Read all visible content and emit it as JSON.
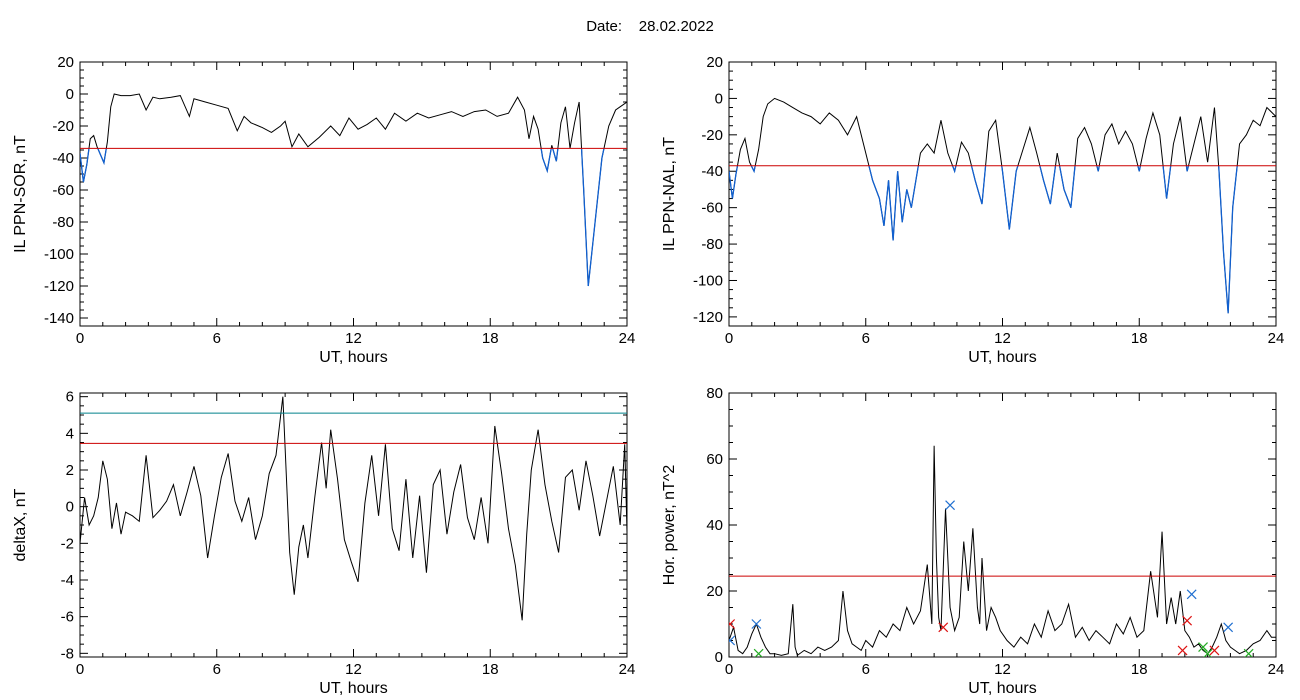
{
  "figure": {
    "date_label": "Date:",
    "date_value": "28.02.2022"
  },
  "colors": {
    "trace": "#000000",
    "below_threshold": "#1060d0",
    "red_threshold": "#cc0000",
    "teal_threshold": "#00808a",
    "marker_blue": "#1f6fd0",
    "marker_red": "#dd1111",
    "marker_green": "#22aa22"
  },
  "chart_data": [
    {
      "id": "il-sor",
      "type": "line",
      "ylabel": "IL PPN-SOR, nT",
      "xlabel": "UT, hours",
      "xlim": [
        0,
        24
      ],
      "ylim": [
        -145,
        20
      ],
      "xticks": [
        0,
        6,
        12,
        18,
        24
      ],
      "yticks": [
        20,
        0,
        -20,
        -40,
        -60,
        -80,
        -100,
        -120,
        -140
      ],
      "thresholds": [
        {
          "value": -34,
          "color": "red"
        }
      ],
      "below_threshold_colored": true,
      "x": [
        0,
        0.15,
        0.3,
        0.45,
        0.6,
        0.75,
        0.9,
        1.05,
        1.2,
        1.35,
        1.5,
        1.8,
        2.2,
        2.6,
        2.9,
        3.2,
        3.5,
        4.0,
        4.4,
        4.8,
        5.0,
        5.5,
        6.0,
        6.5,
        6.9,
        7.2,
        7.5,
        8.0,
        8.4,
        8.8,
        9.0,
        9.3,
        9.6,
        10.0,
        10.5,
        11.0,
        11.4,
        11.8,
        12.2,
        12.6,
        13.0,
        13.4,
        13.8,
        14.3,
        14.8,
        15.3,
        15.8,
        16.3,
        16.8,
        17.3,
        17.8,
        18.3,
        18.8,
        19.2,
        19.5,
        19.7,
        19.9,
        20.1,
        20.3,
        20.5,
        20.7,
        20.9,
        21.1,
        21.3,
        21.5,
        21.7,
        21.9,
        22.1,
        22.3,
        22.6,
        22.9,
        23.2,
        23.5,
        23.8,
        24
      ],
      "y": [
        -37,
        -55,
        -44,
        -28,
        -26,
        -33,
        -38,
        -43,
        -30,
        -8,
        0,
        -1,
        -1,
        0,
        -10,
        -2,
        -3,
        -2,
        -1,
        -14,
        -3,
        -5,
        -7,
        -9,
        -23,
        -14,
        -18,
        -21,
        -24,
        -20,
        -17,
        -33,
        -25,
        -33,
        -27,
        -20,
        -26,
        -15,
        -22,
        -19,
        -15,
        -22,
        -12,
        -17,
        -12,
        -15,
        -13,
        -11,
        -14,
        -11,
        -10,
        -14,
        -12,
        -2,
        -10,
        -28,
        -14,
        -22,
        -40,
        -48,
        -32,
        -42,
        -18,
        -8,
        -34,
        -18,
        -5,
        -60,
        -120,
        -80,
        -40,
        -20,
        -10,
        -7,
        -5
      ]
    },
    {
      "id": "il-nal",
      "type": "line",
      "ylabel": "IL PPN-NAL, nT",
      "xlabel": "UT, hours",
      "xlim": [
        0,
        24
      ],
      "ylim": [
        -125,
        20
      ],
      "xticks": [
        0,
        6,
        12,
        18,
        24
      ],
      "yticks": [
        20,
        0,
        -20,
        -40,
        -60,
        -80,
        -100,
        -120
      ],
      "thresholds": [
        {
          "value": -37,
          "color": "red"
        }
      ],
      "below_threshold_colored": true,
      "x": [
        0,
        0.15,
        0.3,
        0.5,
        0.7,
        0.9,
        1.1,
        1.3,
        1.5,
        1.7,
        2.0,
        2.4,
        2.8,
        3.2,
        3.6,
        4.0,
        4.4,
        4.8,
        5.2,
        5.6,
        6.0,
        6.3,
        6.6,
        6.8,
        7.0,
        7.2,
        7.4,
        7.6,
        7.8,
        8.0,
        8.2,
        8.4,
        8.7,
        9.0,
        9.3,
        9.6,
        9.9,
        10.2,
        10.5,
        10.8,
        11.1,
        11.4,
        11.7,
        12.0,
        12.3,
        12.6,
        12.9,
        13.2,
        13.5,
        13.8,
        14.1,
        14.4,
        14.7,
        15.0,
        15.3,
        15.6,
        15.9,
        16.2,
        16.5,
        16.8,
        17.1,
        17.4,
        17.7,
        18.0,
        18.3,
        18.6,
        18.9,
        19.2,
        19.5,
        19.8,
        20.1,
        20.4,
        20.7,
        21.0,
        21.3,
        21.5,
        21.7,
        21.9,
        22.1,
        22.4,
        22.7,
        23.0,
        23.3,
        23.6,
        24
      ],
      "y": [
        -40,
        -55,
        -42,
        -28,
        -22,
        -35,
        -40,
        -28,
        -10,
        -3,
        0,
        -2,
        -5,
        -8,
        -10,
        -14,
        -8,
        -12,
        -20,
        -10,
        -30,
        -45,
        -55,
        -70,
        -45,
        -78,
        -40,
        -68,
        -50,
        -60,
        -45,
        -30,
        -25,
        -30,
        -12,
        -30,
        -40,
        -24,
        -30,
        -45,
        -58,
        -18,
        -12,
        -40,
        -72,
        -40,
        -28,
        -16,
        -30,
        -45,
        -58,
        -30,
        -50,
        -60,
        -22,
        -16,
        -25,
        -40,
        -20,
        -14,
        -25,
        -18,
        -25,
        -40,
        -22,
        -8,
        -20,
        -55,
        -25,
        -10,
        -40,
        -25,
        -10,
        -35,
        -5,
        -40,
        -85,
        -118,
        -60,
        -25,
        -20,
        -12,
        -15,
        -5,
        -10
      ]
    },
    {
      "id": "deltax",
      "type": "line",
      "ylabel": "deltaX, nT",
      "xlabel": "UT, hours",
      "xlim": [
        0,
        24
      ],
      "ylim": [
        -8.2,
        6.2
      ],
      "xticks": [
        0,
        6,
        12,
        18,
        24
      ],
      "yticks": [
        6,
        4,
        2,
        0,
        -2,
        -4,
        -6,
        -8
      ],
      "thresholds": [
        {
          "value": 5.1,
          "color": "teal"
        },
        {
          "value": 3.45,
          "color": "red"
        }
      ],
      "below_threshold_colored": false,
      "x": [
        0,
        0.2,
        0.4,
        0.6,
        0.8,
        1.0,
        1.2,
        1.4,
        1.6,
        1.8,
        2.0,
        2.3,
        2.6,
        2.9,
        3.2,
        3.5,
        3.8,
        4.1,
        4.4,
        4.7,
        5.0,
        5.3,
        5.6,
        5.9,
        6.2,
        6.5,
        6.8,
        7.1,
        7.4,
        7.7,
        8.0,
        8.3,
        8.6,
        8.9,
        9.0,
        9.2,
        9.4,
        9.6,
        9.8,
        10.0,
        10.3,
        10.6,
        10.8,
        11.0,
        11.3,
        11.6,
        11.9,
        12.2,
        12.5,
        12.8,
        13.1,
        13.4,
        13.7,
        14.0,
        14.3,
        14.6,
        14.9,
        15.2,
        15.5,
        15.8,
        16.1,
        16.4,
        16.7,
        17.0,
        17.3,
        17.6,
        17.9,
        18.2,
        18.5,
        18.8,
        19.1,
        19.4,
        19.6,
        19.8,
        20.1,
        20.4,
        20.7,
        21.0,
        21.3,
        21.6,
        21.9,
        22.2,
        22.5,
        22.8,
        23.1,
        23.4,
        23.7,
        23.9,
        24
      ],
      "y": [
        -2,
        0.5,
        -1,
        -0.5,
        0.5,
        2.5,
        1.5,
        -1.2,
        0.2,
        -1.5,
        -0.3,
        -0.5,
        -0.8,
        2.8,
        -0.6,
        -0.2,
        0.3,
        1.2,
        -0.5,
        0.8,
        2.2,
        0.6,
        -2.8,
        -0.5,
        1.6,
        2.9,
        0.3,
        -0.8,
        0.5,
        -1.8,
        -0.5,
        1.8,
        2.8,
        6.0,
        3.2,
        -2.5,
        -4.8,
        -2.2,
        -1.0,
        -2.8,
        0.5,
        3.5,
        1.0,
        4.2,
        1.5,
        -1.8,
        -3.0,
        -4.1,
        0.2,
        2.8,
        -0.5,
        3.4,
        -1.2,
        -2.4,
        1.5,
        -2.8,
        0.6,
        -3.6,
        1.2,
        2.0,
        -1.5,
        0.8,
        2.3,
        -0.6,
        -1.8,
        0.5,
        -2.0,
        4.4,
        1.8,
        -1.2,
        -3.2,
        -6.2,
        -1.5,
        2.0,
        4.2,
        1.2,
        -0.8,
        -2.5,
        1.6,
        2.0,
        -0.2,
        2.5,
        0.6,
        -1.6,
        0.3,
        2.2,
        -1.0,
        3.4,
        -1.4
      ]
    },
    {
      "id": "hor-power",
      "type": "line",
      "ylabel": "Hor. power, nT^2",
      "xlabel": "UT, hours",
      "xlim": [
        0,
        24
      ],
      "ylim": [
        0,
        80
      ],
      "xticks": [
        0,
        6,
        12,
        18,
        24
      ],
      "yticks": [
        80,
        60,
        40,
        20,
        0
      ],
      "thresholds": [
        {
          "value": 24.5,
          "color": "red"
        }
      ],
      "below_threshold_colored": false,
      "x": [
        0,
        0.2,
        0.4,
        0.6,
        0.8,
        1.0,
        1.2,
        1.4,
        1.6,
        1.8,
        2.0,
        2.3,
        2.6,
        2.8,
        2.9,
        3.0,
        3.3,
        3.6,
        3.9,
        4.2,
        4.5,
        4.8,
        5.0,
        5.2,
        5.4,
        5.6,
        5.8,
        6.0,
        6.3,
        6.6,
        6.9,
        7.2,
        7.5,
        7.8,
        8.1,
        8.4,
        8.7,
        8.9,
        9.0,
        9.1,
        9.2,
        9.3,
        9.5,
        9.7,
        9.9,
        10.1,
        10.3,
        10.5,
        10.7,
        10.9,
        11.0,
        11.1,
        11.3,
        11.5,
        11.7,
        11.9,
        12.2,
        12.5,
        12.8,
        13.1,
        13.4,
        13.7,
        14.0,
        14.3,
        14.6,
        14.9,
        15.2,
        15.5,
        15.8,
        16.1,
        16.4,
        16.7,
        17.0,
        17.3,
        17.6,
        17.9,
        18.2,
        18.5,
        18.8,
        19.0,
        19.2,
        19.4,
        19.6,
        19.8,
        20.0,
        20.2,
        20.4,
        20.6,
        20.8,
        21.0,
        21.2,
        21.4,
        21.6,
        21.8,
        22.0,
        22.2,
        22.4,
        22.7,
        23.0,
        23.3,
        23.6,
        23.8,
        24
      ],
      "y": [
        5,
        9,
        2,
        1,
        3,
        7,
        10,
        6,
        3,
        1,
        1,
        0.5,
        1,
        16,
        3,
        0.5,
        2,
        1,
        3,
        2,
        3,
        5,
        20,
        8,
        4,
        3,
        2,
        5,
        3,
        8,
        6,
        10,
        8,
        15,
        10,
        14,
        28,
        10,
        64,
        30,
        12,
        8,
        45,
        15,
        8,
        12,
        35,
        20,
        39,
        15,
        10,
        30,
        8,
        15,
        12,
        8,
        5,
        3,
        6,
        4,
        10,
        6,
        14,
        8,
        10,
        16,
        6,
        9,
        5,
        8,
        6,
        4,
        10,
        7,
        12,
        6,
        8,
        26,
        12,
        38,
        10,
        18,
        10,
        20,
        8,
        6,
        3,
        4,
        2,
        1,
        3,
        6,
        10,
        5,
        3,
        2,
        1,
        2,
        4,
        5,
        8,
        6,
        6
      ],
      "markers": [
        {
          "x": 0.05,
          "y": 10,
          "color": "red",
          "shape": "x"
        },
        {
          "x": 0.05,
          "y": 5,
          "color": "blue",
          "shape": "x"
        },
        {
          "x": 1.2,
          "y": 10,
          "color": "blue",
          "shape": "x"
        },
        {
          "x": 1.3,
          "y": 1,
          "color": "green",
          "shape": "x"
        },
        {
          "x": 9.4,
          "y": 9,
          "color": "red",
          "shape": "x"
        },
        {
          "x": 9.7,
          "y": 46,
          "color": "blue",
          "shape": "x"
        },
        {
          "x": 19.9,
          "y": 2,
          "color": "red",
          "shape": "x"
        },
        {
          "x": 20.1,
          "y": 11,
          "color": "red",
          "shape": "x"
        },
        {
          "x": 20.3,
          "y": 19,
          "color": "blue",
          "shape": "x"
        },
        {
          "x": 20.8,
          "y": 3,
          "color": "green",
          "shape": "x"
        },
        {
          "x": 21.0,
          "y": 1,
          "color": "green",
          "shape": "x"
        },
        {
          "x": 21.3,
          "y": 2,
          "color": "red",
          "shape": "x"
        },
        {
          "x": 21.9,
          "y": 9,
          "color": "blue",
          "shape": "x"
        },
        {
          "x": 22.8,
          "y": 1,
          "color": "green",
          "shape": "x"
        }
      ]
    }
  ]
}
